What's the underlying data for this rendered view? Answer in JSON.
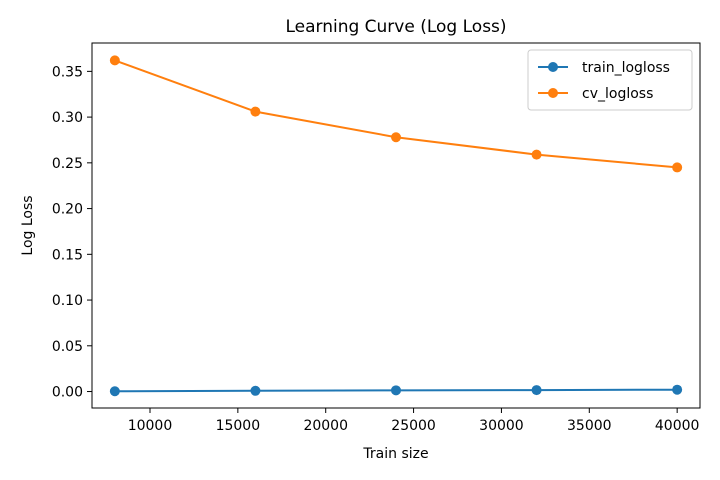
{
  "chart_data": {
    "type": "line",
    "title": "Learning Curve (Log Loss)",
    "xlabel": "Train size",
    "ylabel": "Log Loss",
    "x": [
      8000,
      16000,
      24000,
      32000,
      40000
    ],
    "xlim": [
      6700,
      41300
    ],
    "ylim": [
      -0.018,
      0.381
    ],
    "xticks": [
      10000,
      15000,
      20000,
      25000,
      30000,
      35000,
      40000
    ],
    "yticks": [
      0.0,
      0.05,
      0.1,
      0.15,
      0.2,
      0.25,
      0.3,
      0.35
    ],
    "xtick_labels": [
      "10000",
      "15000",
      "20000",
      "25000",
      "30000",
      "35000",
      "40000"
    ],
    "ytick_labels": [
      "0.00",
      "0.05",
      "0.10",
      "0.15",
      "0.20",
      "0.25",
      "0.30",
      "0.35"
    ],
    "grid": false,
    "legend_position": "top-right",
    "series": [
      {
        "name": "train_logloss",
        "color": "#1f77b4",
        "marker": "circle",
        "values": [
          0.0003,
          0.0008,
          0.0013,
          0.0016,
          0.002
        ]
      },
      {
        "name": "cv_logloss",
        "color": "#ff7f0e",
        "marker": "circle",
        "values": [
          0.362,
          0.306,
          0.278,
          0.259,
          0.245
        ]
      }
    ]
  }
}
